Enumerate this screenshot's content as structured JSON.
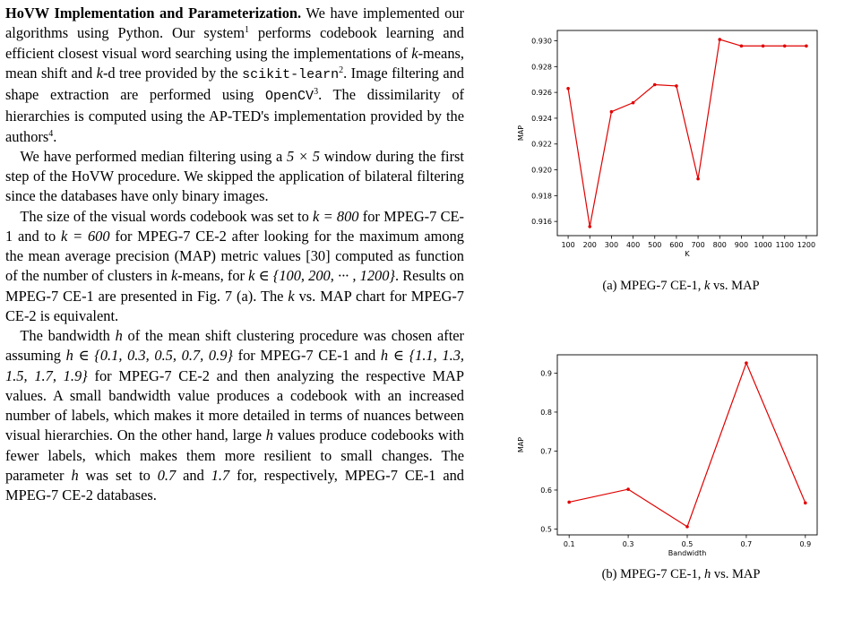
{
  "paragraphs": [
    {
      "heading": "HoVW Implementation and Parameterization.",
      "segments": [
        {
          "t": " We have implemented our algorithms using Python. Our system"
        },
        {
          "t": "1",
          "sup": true
        },
        {
          "t": " performs codebook learning and efficient closest visual word searching using the implementations of "
        },
        {
          "t": "k",
          "math": true
        },
        {
          "t": "-means, mean shift and "
        },
        {
          "t": "k",
          "math": true
        },
        {
          "t": "-d tree provided by the "
        },
        {
          "t": "scikit-learn",
          "mono": true
        },
        {
          "t": "2",
          "sup": true
        },
        {
          "t": ". Image filtering and shape extraction are performed using "
        },
        {
          "t": "OpenCV",
          "mono": true
        },
        {
          "t": "3",
          "sup": true
        },
        {
          "t": ". The dissimilarity of hierarchies is computed using the AP-TED's implementation provided by the authors"
        },
        {
          "t": "4",
          "sup": true
        },
        {
          "t": "."
        }
      ]
    },
    {
      "segments": [
        {
          "t": "We have performed median filtering using a "
        },
        {
          "t": "5 × 5",
          "math": true
        },
        {
          "t": " window during the first step of the HoVW procedure. We skipped the application of bilateral filtering since the databases have only binary images."
        }
      ]
    },
    {
      "segments": [
        {
          "t": "The size of the visual words codebook was set to "
        },
        {
          "t": "k = 800",
          "math": true
        },
        {
          "t": " for MPEG-7 CE-1 and to "
        },
        {
          "t": "k = 600",
          "math": true
        },
        {
          "t": " for MPEG-7 CE-2 after looking for the maximum among the mean average precision (MAP) metric values [30] computed as function of the number of clusters in "
        },
        {
          "t": "k",
          "math": true
        },
        {
          "t": "-means, for "
        },
        {
          "t": "k ∈ {100, 200, ··· , 1200}",
          "math": true
        },
        {
          "t": ". Results on MPEG-7 CE-1 are presented in Fig. 7 (a). The "
        },
        {
          "t": "k",
          "math": true
        },
        {
          "t": " vs. MAP chart for MPEG-7 CE-2 is equivalent."
        }
      ]
    },
    {
      "segments": [
        {
          "t": "The bandwidth "
        },
        {
          "t": "h",
          "math": true
        },
        {
          "t": " of the mean shift clustering procedure was chosen after assuming "
        },
        {
          "t": "h ∈ {0.1, 0.3, 0.5, 0.7, 0.9}",
          "math": true
        },
        {
          "t": " for MPEG-7 CE-1 and "
        },
        {
          "t": "h ∈ {1.1, 1.3, 1.5, 1.7, 1.9}",
          "math": true
        },
        {
          "t": " for MPEG-7 CE-2 and then analyzing the respective MAP values. A small bandwidth value produces a codebook with an increased number of labels, which makes it more detailed in terms of nuances between visual hierarchies. On the other hand, large "
        },
        {
          "t": "h",
          "math": true
        },
        {
          "t": " values produce codebooks with fewer labels, which makes them more resilient to small changes. The parameter "
        },
        {
          "t": "h",
          "math": true
        },
        {
          "t": " was set to "
        },
        {
          "t": "0.7",
          "math": true
        },
        {
          "t": " and "
        },
        {
          "t": "1.7",
          "math": true
        },
        {
          "t": " for, respectively, MPEG-7 CE-1 and MPEG-7 CE-2 databases."
        }
      ]
    }
  ],
  "chart_data": [
    {
      "type": "line",
      "caption": "(a) MPEG-7 CE-1, k vs. MAP",
      "caption_parts": [
        "(a) MPEG-7 CE-1, ",
        "k",
        " vs. MAP"
      ],
      "xlabel": "K",
      "ylabel": "MAP",
      "x": [
        100,
        200,
        300,
        400,
        500,
        600,
        700,
        800,
        900,
        1000,
        1100,
        1200
      ],
      "y": [
        0.9263,
        0.9156,
        0.9245,
        0.9252,
        0.9266,
        0.9265,
        0.9193,
        0.9301,
        0.9296,
        0.9296,
        0.9296,
        0.9296
      ],
      "xticks": [
        100,
        200,
        300,
        400,
        500,
        600,
        700,
        800,
        900,
        1000,
        1100,
        1200
      ],
      "yticks": [
        0.916,
        0.918,
        0.92,
        0.922,
        0.924,
        0.926,
        0.928,
        0.93
      ],
      "ytick_labels": [
        "0.916",
        "0.918",
        "0.920",
        "0.922",
        "0.924",
        "0.926",
        "0.928",
        "0.930"
      ],
      "xlim": [
        50,
        1250
      ],
      "ylim": [
        0.9149,
        0.9308
      ],
      "grid": false,
      "color": "#e00000"
    },
    {
      "type": "line",
      "caption": "(b) MPEG-7 CE-1, h vs. MAP",
      "caption_parts": [
        "(b) MPEG-7 CE-1, ",
        "h",
        " vs. MAP"
      ],
      "xlabel": "Bandwidth",
      "ylabel": "MAP",
      "x": [
        0.1,
        0.3,
        0.5,
        0.7,
        0.9
      ],
      "y": [
        0.569,
        0.602,
        0.506,
        0.926,
        0.567
      ],
      "xticks": [
        0.1,
        0.3,
        0.5,
        0.7,
        0.9
      ],
      "xtick_labels": [
        "0.1",
        "0.3",
        "0.5",
        "0.7",
        "0.9"
      ],
      "yticks": [
        0.5,
        0.6,
        0.7,
        0.8,
        0.9
      ],
      "ytick_labels": [
        "0.5",
        "0.6",
        "0.7",
        "0.8",
        "0.9"
      ],
      "xlim": [
        0.06,
        0.94
      ],
      "ylim": [
        0.485,
        0.947
      ],
      "grid": false,
      "color": "#e00000"
    }
  ]
}
